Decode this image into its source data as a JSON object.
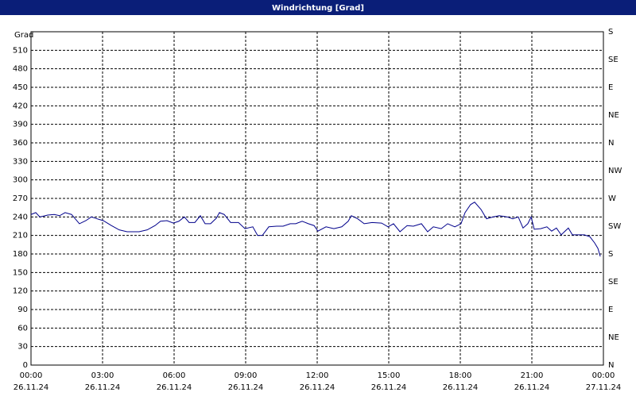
{
  "chart_data": {
    "type": "line",
    "title": "Windrichtung [Grad]",
    "y_label": "Grad",
    "x": [
      0,
      0.2,
      0.37,
      0.7,
      0.97,
      1.2,
      1.43,
      1.7,
      2.03,
      2.3,
      2.53,
      2.77,
      3.03,
      3.37,
      3.7,
      4.03,
      4.53,
      4.87,
      5.2,
      5.43,
      5.7,
      5.97,
      6.2,
      6.43,
      6.63,
      6.87,
      7.1,
      7.3,
      7.53,
      7.77,
      7.9,
      8.1,
      8.37,
      8.7,
      8.97,
      9.3,
      9.5,
      9.7,
      9.97,
      10.3,
      10.57,
      10.87,
      11.1,
      11.37,
      11.63,
      11.87,
      12.03,
      12.37,
      12.7,
      13.03,
      13.3,
      13.43,
      13.7,
      13.97,
      14.3,
      14.7,
      14.97,
      15.2,
      15.47,
      15.77,
      16.03,
      16.37,
      16.63,
      16.87,
      17.2,
      17.47,
      17.77,
      18.03,
      18.2,
      18.43,
      18.6,
      18.87,
      19.1,
      19.37,
      19.63,
      19.97,
      20.2,
      20.43,
      20.63,
      20.83,
      20.97,
      21.1,
      21.37,
      21.63,
      21.83,
      22.03,
      22.23,
      22.53,
      22.7,
      23.2,
      23.43,
      23.63,
      23.77,
      23.87
    ],
    "series": [
      {
        "name": "Windrichtung",
        "color": "#00008b",
        "values": [
          244,
          247,
          240,
          243,
          244,
          242,
          247,
          244,
          229,
          234,
          240,
          237,
          234,
          226,
          219,
          216,
          216,
          219,
          226,
          233,
          234,
          230,
          233,
          240,
          231,
          231,
          242,
          229,
          229,
          238,
          247,
          244,
          231,
          231,
          221,
          224,
          210,
          210,
          224,
          225,
          225,
          229,
          229,
          233,
          229,
          226,
          217,
          224,
          221,
          224,
          233,
          242,
          237,
          229,
          231,
          230,
          224,
          229,
          216,
          226,
          225,
          229,
          216,
          224,
          221,
          229,
          224,
          229,
          247,
          260,
          264,
          252,
          237,
          240,
          242,
          240,
          237,
          240,
          222,
          229,
          240,
          220,
          221,
          224,
          217,
          222,
          211,
          222,
          211,
          211,
          208,
          198,
          189,
          176
        ]
      }
    ],
    "xlim": [
      0,
      24
    ],
    "xticks": [
      {
        "value": 0,
        "label": "00:00"
      },
      {
        "value": 3,
        "label": "03:00"
      },
      {
        "value": 6,
        "label": "06:00"
      },
      {
        "value": 9,
        "label": "09:00"
      },
      {
        "value": 12,
        "label": "12:00"
      },
      {
        "value": 15,
        "label": "15:00"
      },
      {
        "value": 18,
        "label": "18:00"
      },
      {
        "value": 21,
        "label": "21:00"
      },
      {
        "value": 24,
        "label": "00:00"
      }
    ],
    "xtick_dates": [
      "26.11.24",
      "26.11.24",
      "26.11.24",
      "26.11.24",
      "26.11.24",
      "26.11.24",
      "26.11.24",
      "26.11.24",
      "27.11.24"
    ],
    "ylim": [
      0,
      540
    ],
    "yticks": [
      0,
      30,
      60,
      90,
      120,
      150,
      180,
      210,
      240,
      270,
      300,
      330,
      360,
      390,
      420,
      450,
      480,
      510
    ],
    "y2lim": [
      0,
      540
    ],
    "y2ticks": [
      {
        "value": 0,
        "label": "N"
      },
      {
        "value": 45,
        "label": "NE"
      },
      {
        "value": 90,
        "label": "E"
      },
      {
        "value": 135,
        "label": "SE"
      },
      {
        "value": 180,
        "label": "S"
      },
      {
        "value": 225,
        "label": "SW"
      },
      {
        "value": 270,
        "label": "W"
      },
      {
        "value": 315,
        "label": "NW"
      },
      {
        "value": 360,
        "label": "N"
      },
      {
        "value": 405,
        "label": "NE"
      },
      {
        "value": 450,
        "label": "E"
      },
      {
        "value": 495,
        "label": "SE"
      },
      {
        "value": 540,
        "label": "S"
      }
    ],
    "grid": true
  }
}
